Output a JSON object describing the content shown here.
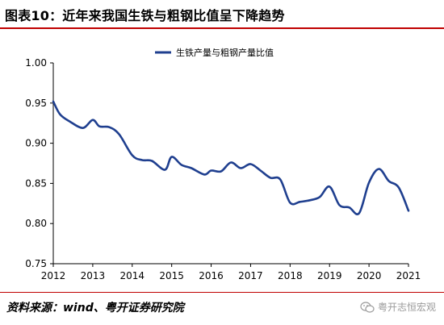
{
  "header": {
    "title": "图表10：近年来我国生铁与粗钢比值呈下降趋势"
  },
  "footer": {
    "source": "资料来源：wind、粤开证券研究院",
    "watermark": "粤开志恒宏观",
    "watermark_icon": "wechat-icon"
  },
  "colors": {
    "series": "#1f3f8f",
    "accent": "#c00000",
    "axis": "#000000"
  },
  "chart_data": {
    "type": "line",
    "ylim": [
      0.75,
      1.0
    ],
    "yticks": [
      "0.75",
      "0.80",
      "0.85",
      "0.90",
      "0.95",
      "1.00"
    ],
    "xlim": [
      2012,
      2021
    ],
    "xticks": [
      "2012",
      "2013",
      "2014",
      "2015",
      "2016",
      "2017",
      "2018",
      "2019",
      "2020",
      "2021"
    ],
    "legend_position": "top-center",
    "grid": false,
    "series": [
      {
        "name": "生铁产量与粗钢产量比值",
        "points": [
          [
            2012.0,
            0.952
          ],
          [
            2012.17,
            0.936
          ],
          [
            2012.42,
            0.927
          ],
          [
            2012.75,
            0.919
          ],
          [
            2013.0,
            0.929
          ],
          [
            2013.17,
            0.921
          ],
          [
            2013.42,
            0.92
          ],
          [
            2013.67,
            0.911
          ],
          [
            2014.0,
            0.885
          ],
          [
            2014.25,
            0.879
          ],
          [
            2014.5,
            0.878
          ],
          [
            2014.83,
            0.867
          ],
          [
            2015.0,
            0.883
          ],
          [
            2015.25,
            0.873
          ],
          [
            2015.5,
            0.869
          ],
          [
            2015.83,
            0.861
          ],
          [
            2016.0,
            0.866
          ],
          [
            2016.25,
            0.865
          ],
          [
            2016.5,
            0.876
          ],
          [
            2016.75,
            0.869
          ],
          [
            2017.0,
            0.874
          ],
          [
            2017.25,
            0.866
          ],
          [
            2017.5,
            0.857
          ],
          [
            2017.75,
            0.855
          ],
          [
            2018.0,
            0.826
          ],
          [
            2018.25,
            0.827
          ],
          [
            2018.5,
            0.829
          ],
          [
            2018.75,
            0.833
          ],
          [
            2019.0,
            0.846
          ],
          [
            2019.25,
            0.823
          ],
          [
            2019.5,
            0.82
          ],
          [
            2019.75,
            0.813
          ],
          [
            2020.0,
            0.851
          ],
          [
            2020.25,
            0.868
          ],
          [
            2020.5,
            0.853
          ],
          [
            2020.75,
            0.845
          ],
          [
            2021.0,
            0.816
          ]
        ]
      }
    ]
  }
}
